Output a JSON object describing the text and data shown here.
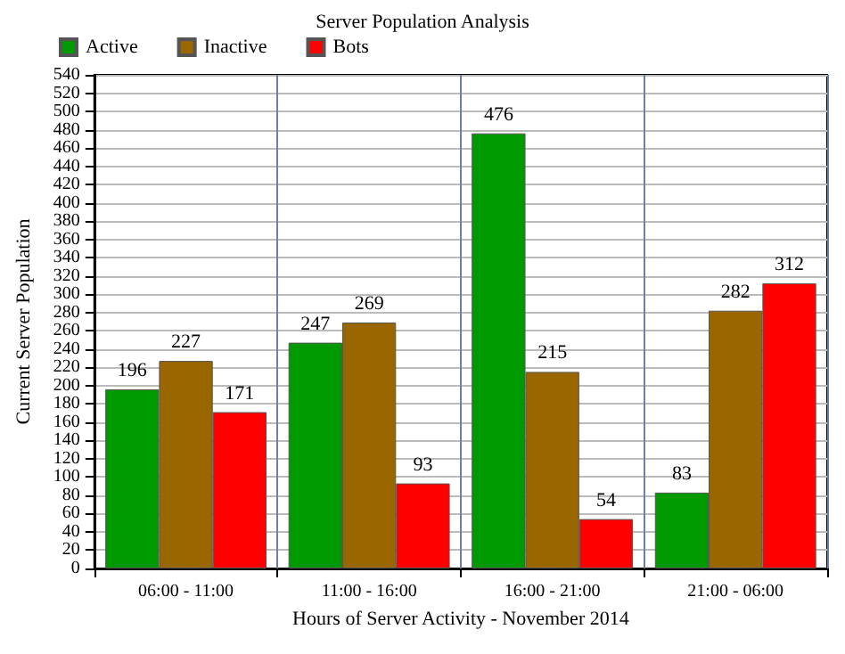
{
  "chart_data": {
    "type": "bar",
    "title": "Server Population Analysis",
    "xlabel": "Hours of Server Activity - November 2014",
    "ylabel": "Current Server Population",
    "categories": [
      "06:00 - 11:00",
      "11:00 - 16:00",
      "16:00 - 21:00",
      "21:00 - 06:00"
    ],
    "series": [
      {
        "name": "Active",
        "color": "#009900",
        "values": [
          196,
          247,
          476,
          83
        ]
      },
      {
        "name": "Inactive",
        "color": "#996600",
        "values": [
          227,
          269,
          215,
          282
        ]
      },
      {
        "name": "Bots",
        "color": "#ff0000",
        "values": [
          171,
          93,
          54,
          312
        ]
      }
    ],
    "ylim": [
      0,
      540
    ],
    "yticks": [
      0,
      20,
      40,
      60,
      80,
      100,
      120,
      140,
      160,
      180,
      200,
      220,
      240,
      260,
      280,
      300,
      320,
      340,
      360,
      380,
      400,
      420,
      440,
      460,
      480,
      500,
      520,
      540
    ],
    "grid": true,
    "legend": "top left",
    "data_labels": true
  }
}
